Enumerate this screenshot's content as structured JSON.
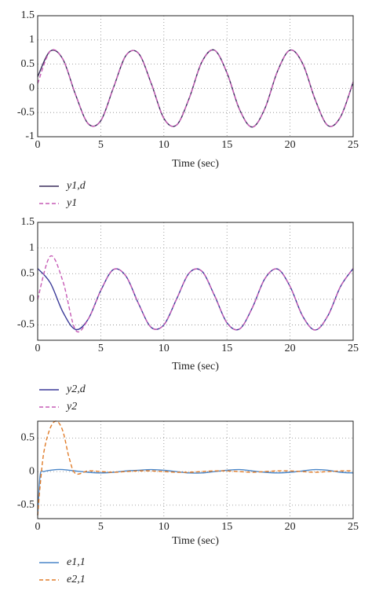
{
  "chart_data": [
    {
      "type": "line",
      "xlabel": "Time (sec)",
      "grid": true,
      "legend": "below",
      "x": [
        0,
        1,
        2,
        3,
        4,
        5,
        6,
        7,
        8,
        9,
        10,
        11,
        12,
        13,
        14,
        15,
        16,
        17,
        18,
        19,
        20,
        21,
        22,
        23,
        24,
        25
      ],
      "xlim": [
        0,
        25
      ],
      "xticks": [
        0,
        5,
        10,
        15,
        20,
        25
      ],
      "ylim": [
        -1,
        1.5
      ],
      "yticks": [
        -1,
        -0.5,
        0,
        0.5,
        1,
        1.5
      ],
      "series": [
        {
          "name": "y1,d",
          "color": "#3a2d5c",
          "linestyle": "solid",
          "values": [
            0.24,
            0.77,
            0.6,
            -0.13,
            -0.73,
            -0.67,
            0.01,
            0.68,
            0.72,
            0.1,
            -0.62,
            -0.76,
            -0.21,
            0.54,
            0.79,
            0.32,
            -0.44,
            -0.8,
            -0.42,
            0.35,
            0.79,
            0.51,
            -0.24,
            -0.77,
            -0.59,
            0.13
          ]
        },
        {
          "name": "y1",
          "color": "#c65bb5",
          "linestyle": "dashed",
          "values": [
            0.1,
            0.77,
            0.6,
            -0.13,
            -0.73,
            -0.67,
            0.01,
            0.68,
            0.72,
            0.1,
            -0.62,
            -0.76,
            -0.21,
            0.54,
            0.79,
            0.32,
            -0.44,
            -0.8,
            -0.42,
            0.35,
            0.79,
            0.51,
            -0.24,
            -0.77,
            -0.59,
            0.13
          ]
        }
      ]
    },
    {
      "type": "line",
      "xlabel": "Time (sec)",
      "grid": true,
      "legend": "below",
      "x": [
        0,
        1,
        2,
        3,
        4,
        5,
        6,
        7,
        8,
        9,
        10,
        11,
        12,
        13,
        14,
        15,
        16,
        17,
        18,
        19,
        20,
        21,
        22,
        23,
        24,
        25
      ],
      "xlim": [
        0,
        25
      ],
      "xticks": [
        0,
        5,
        10,
        15,
        20,
        25
      ],
      "ylim": [
        -0.8,
        1.5
      ],
      "yticks": [
        -0.5,
        0,
        0.5,
        1,
        1.5
      ],
      "series": [
        {
          "name": "y2,d",
          "color": "#3b3a98",
          "linestyle": "solid",
          "values": [
            0.6,
            0.32,
            -0.25,
            -0.59,
            -0.39,
            0.17,
            0.58,
            0.45,
            -0.09,
            -0.55,
            -0.5,
            0,
            0.51,
            0.55,
            0.08,
            -0.46,
            -0.58,
            -0.17,
            0.4,
            0.59,
            0.25,
            -0.33,
            -0.6,
            -0.32,
            0.25,
            0.6
          ]
        },
        {
          "name": "y2",
          "color": "#c65bb5",
          "linestyle": "dashed",
          "values": [
            0,
            0.84,
            0.35,
            -0.6,
            -0.39,
            0.17,
            0.58,
            0.45,
            -0.09,
            -0.55,
            -0.5,
            0,
            0.51,
            0.55,
            0.08,
            -0.46,
            -0.58,
            -0.17,
            0.4,
            0.59,
            0.25,
            -0.33,
            -0.6,
            -0.32,
            0.25,
            0.6
          ]
        }
      ]
    },
    {
      "type": "line",
      "xlabel": "Time (sec)",
      "grid": true,
      "legend": "below",
      "x": [
        0,
        0.2,
        0.5,
        1,
        1.5,
        2,
        2.5,
        3,
        4,
        5,
        6,
        7,
        8,
        9,
        10,
        11,
        12,
        13,
        14,
        15,
        16,
        17,
        18,
        19,
        20,
        21,
        22,
        23,
        24,
        25
      ],
      "xlim": [
        0,
        25
      ],
      "xticks": [
        0,
        5,
        10,
        15,
        20,
        25
      ],
      "ylim": [
        -0.7,
        0.75
      ],
      "yticks": [
        -0.5,
        0,
        0.5
      ],
      "series": [
        {
          "name": "e1,1",
          "color": "#4a86c8",
          "linestyle": "solid",
          "values": [
            -0.65,
            -0.05,
            0,
            0.02,
            0.03,
            0.03,
            0.02,
            0.01,
            -0.01,
            -0.02,
            -0.01,
            0.01,
            0.02,
            0.03,
            0.02,
            0,
            -0.02,
            -0.02,
            0,
            0.02,
            0.03,
            0.01,
            -0.01,
            -0.02,
            -0.01,
            0.01,
            0.03,
            0.02,
            -0.01,
            -0.02
          ]
        },
        {
          "name": "e2,1",
          "color": "#e07b28",
          "linestyle": "dashed",
          "values": [
            -0.65,
            -0.2,
            0.3,
            0.65,
            0.75,
            0.6,
            0.2,
            -0.03,
            0.01,
            0,
            -0.01,
            0,
            0.01,
            0.01,
            0,
            -0.01,
            -0.01,
            0,
            0.01,
            0.01,
            0,
            -0.01,
            0,
            0.01,
            0.01,
            0,
            -0.01,
            0,
            0.01,
            0.01
          ]
        }
      ]
    }
  ]
}
